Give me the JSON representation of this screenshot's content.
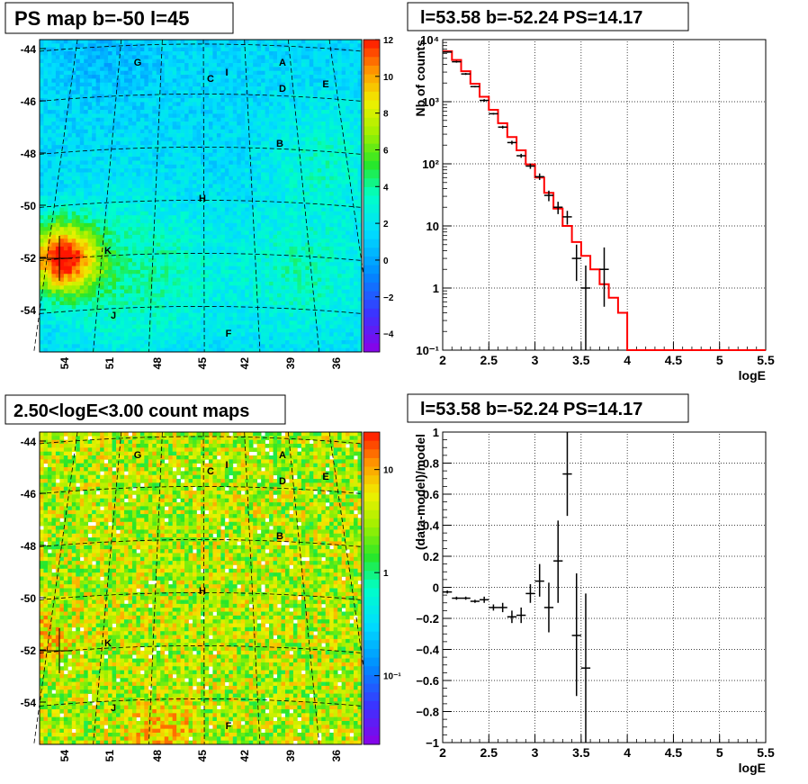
{
  "chart_data": [
    {
      "type": "heatmap",
      "title": "PS map b=-50 l=45",
      "xlabel": "",
      "ylabel": "",
      "x_ticks": [
        "54",
        "51",
        "48",
        "45",
        "42",
        "39",
        "36"
      ],
      "y_ticks": [
        "-44",
        "-46",
        "-48",
        "-50",
        "-52",
        "-54"
      ],
      "colorbar_ticks": [
        "12",
        "10",
        "8",
        "6",
        "4",
        "2",
        "0",
        "−2",
        "−4"
      ],
      "colorbar_range": [
        -5,
        12
      ],
      "grid": true,
      "source_labels": [
        "G",
        "C",
        "I",
        "A",
        "D",
        "E",
        "B",
        "H",
        "K",
        "J",
        "F"
      ],
      "color_scale": "rainbow (violet → blue → cyan → green → yellow → red)"
    },
    {
      "type": "line",
      "title": "l=53.58 b=-52.24 PS=14.17",
      "xlabel": "logE",
      "ylabel": "Nb of counts",
      "log_y": true,
      "xlim": [
        2,
        5.5
      ],
      "ylim": [
        0.1,
        10000
      ],
      "x_ticks": [
        "2",
        "2.5",
        "3",
        "3.5",
        "4",
        "4.5",
        "5",
        "5.5"
      ],
      "y_ticks": [
        "10⁻¹",
        "1",
        "10",
        "10²",
        "10³",
        "10⁴"
      ],
      "grid": true,
      "series": [
        {
          "kind": "model-step",
          "color": "#ff0000",
          "x": [
            2.0,
            2.1,
            2.2,
            2.3,
            2.4,
            2.5,
            2.6,
            2.7,
            2.8,
            2.9,
            3.0,
            3.1,
            3.2,
            3.3,
            3.4,
            3.5,
            3.6,
            3.7,
            3.8,
            3.9,
            4.0,
            5.5
          ],
          "values": [
            6500,
            4700,
            3100,
            1950,
            1200,
            740,
            450,
            270,
            165,
            98,
            60,
            34,
            19,
            10,
            5.5,
            3.3,
            2.0,
            1.15,
            0.7,
            0.4,
            0.1,
            0.1
          ]
        },
        {
          "kind": "data-points",
          "color": "#000000",
          "x": [
            2.05,
            2.15,
            2.25,
            2.35,
            2.45,
            2.55,
            2.65,
            2.75,
            2.85,
            2.95,
            3.05,
            3.15,
            3.25,
            3.35,
            3.45,
            3.55,
            3.75
          ],
          "values": [
            6300,
            4400,
            2800,
            1750,
            1050,
            640,
            390,
            220,
            135,
            92,
            62,
            31,
            20,
            14,
            3,
            1,
            2
          ],
          "y_low": [
            6150,
            4250,
            2700,
            1700,
            1000,
            620,
            370,
            205,
            125,
            83,
            55,
            25,
            15.5,
            10.5,
            1.3,
            0.1,
            0.5
          ],
          "y_high": [
            6450,
            4550,
            2900,
            1800,
            1100,
            660,
            410,
            235,
            145,
            101,
            70,
            37,
            24.5,
            17.5,
            5,
            2.3,
            4.5
          ]
        }
      ]
    },
    {
      "type": "heatmap",
      "title": "2.50<logE<3.00 count maps",
      "xlabel": "",
      "ylabel": "",
      "x_ticks": [
        "54",
        "51",
        "48",
        "45",
        "42",
        "39",
        "36"
      ],
      "y_ticks": [
        "-44",
        "-46",
        "-48",
        "-50",
        "-52",
        "-54"
      ],
      "colorbar_ticks": [
        "10",
        "1",
        "10⁻¹"
      ],
      "colorbar_log": true,
      "grid": true,
      "source_labels": [
        "G",
        "C",
        "I",
        "A",
        "D",
        "E",
        "B",
        "H",
        "K",
        "J",
        "F"
      ]
    },
    {
      "type": "scatter",
      "title": "l=53.58 b=-52.24 PS=14.17",
      "xlabel": "logE",
      "ylabel": "(data-model)/model",
      "xlim": [
        2,
        5.5
      ],
      "ylim": [
        -1,
        1
      ],
      "x_ticks": [
        "2",
        "2.5",
        "3",
        "3.5",
        "4",
        "4.5",
        "5",
        "5.5"
      ],
      "y_ticks": [
        "−1",
        "−0.8",
        "−0.6",
        "−0.4",
        "−0.2",
        "0",
        "0.2",
        "0.4",
        "0.6",
        "0.8",
        "1"
      ],
      "grid": true,
      "series": [
        {
          "kind": "residuals",
          "color": "#000000",
          "x": [
            2.05,
            2.15,
            2.25,
            2.35,
            2.45,
            2.55,
            2.65,
            2.75,
            2.85,
            2.95,
            3.05,
            3.15,
            3.25,
            3.35,
            3.45,
            3.55
          ],
          "values": [
            -0.03,
            -0.07,
            -0.07,
            -0.09,
            -0.08,
            -0.13,
            -0.13,
            -0.19,
            -0.18,
            -0.04,
            0.04,
            -0.13,
            0.17,
            0.73,
            -0.31,
            -0.52
          ],
          "y_low": [
            -0.04,
            -0.08,
            -0.08,
            -0.1,
            -0.1,
            -0.15,
            -0.16,
            -0.23,
            -0.23,
            -0.1,
            -0.06,
            -0.29,
            -0.1,
            0.46,
            -0.7,
            -1.0
          ],
          "y_high": [
            -0.02,
            -0.06,
            -0.06,
            -0.08,
            -0.06,
            -0.11,
            -0.1,
            -0.15,
            -0.13,
            0.02,
            0.15,
            0.03,
            0.43,
            1.0,
            0.09,
            -0.04
          ]
        }
      ]
    }
  ]
}
